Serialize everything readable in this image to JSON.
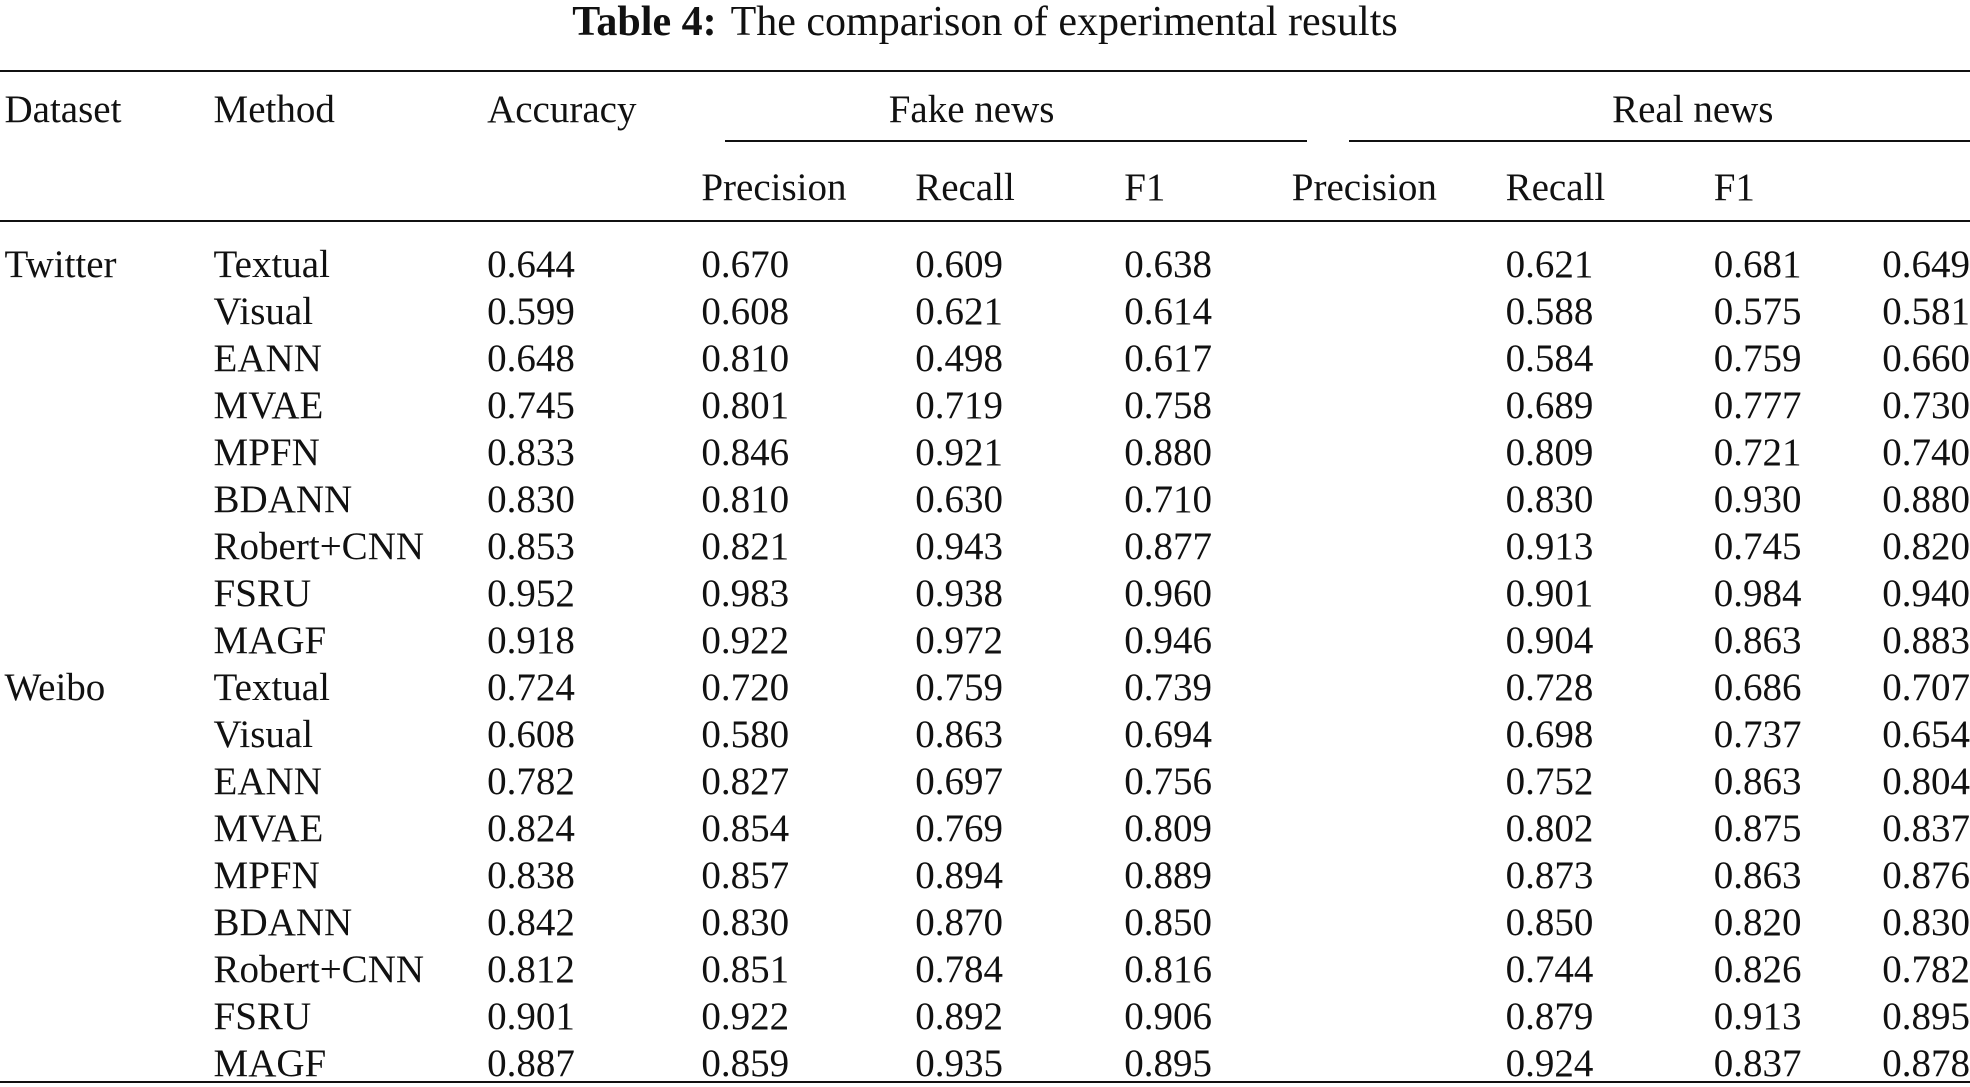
{
  "caption": {
    "label": "Table 4:",
    "text": "The comparison of experimental results"
  },
  "headers": {
    "dataset": "Dataset",
    "method": "Method",
    "accuracy": "Accuracy",
    "fake_news": "Fake news",
    "real_news": "Real news",
    "precision": "Precision",
    "recall": "Recall",
    "f1": "F1"
  },
  "rows": [
    {
      "dataset": "Twitter",
      "method": "Textual",
      "values": [
        "0.644",
        "0.670",
        "0.609",
        "0.638",
        "0.621",
        "0.681",
        "0.649"
      ],
      "bold": []
    },
    {
      "dataset": "",
      "method": "Visual",
      "values": [
        "0.599",
        "0.608",
        "0.621",
        "0.614",
        "0.588",
        "0.575",
        "0.581"
      ],
      "bold": []
    },
    {
      "dataset": "",
      "method": "EANN",
      "values": [
        "0.648",
        "0.810",
        "0.498",
        "0.617",
        "0.584",
        "0.759",
        "0.660"
      ],
      "bold": []
    },
    {
      "dataset": "",
      "method": "MVAE",
      "values": [
        "0.745",
        "0.801",
        "0.719",
        "0.758",
        "0.689",
        "0.777",
        "0.730"
      ],
      "bold": []
    },
    {
      "dataset": "",
      "method": "MPFN",
      "values": [
        "0.833",
        "0.846",
        "0.921",
        "0.880",
        "0.809",
        "0.721",
        "0.740"
      ],
      "bold": []
    },
    {
      "dataset": "",
      "method": "BDANN",
      "values": [
        "0.830",
        "0.810",
        "0.630",
        "0.710",
        "0.830",
        "0.930",
        "0.880"
      ],
      "bold": []
    },
    {
      "dataset": "",
      "method": "Robert+CNN",
      "values": [
        "0.853",
        "0.821",
        "0.943",
        "0.877",
        "0.913",
        "0.745",
        "0.820"
      ],
      "bold": [
        4
      ]
    },
    {
      "dataset": "",
      "method": "FSRU",
      "values": [
        "0.952",
        "0.983",
        "0.938",
        "0.960",
        "0.901",
        "0.984",
        "0.940"
      ],
      "bold": [
        0,
        1,
        3,
        5,
        6
      ]
    },
    {
      "dataset": "",
      "method": "MAGF",
      "method_bold": true,
      "values": [
        "0.918",
        "0.922",
        "0.972",
        "0.946",
        "0.904",
        "0.863",
        "0.883"
      ],
      "bold": [
        2
      ]
    },
    {
      "dataset": "Weibo",
      "method": "Textual",
      "values": [
        "0.724",
        "0.720",
        "0.759",
        "0.739",
        "0.728",
        "0.686",
        "0.707"
      ],
      "bold": []
    },
    {
      "dataset": "",
      "method": "Visual",
      "values": [
        "0.608",
        "0.580",
        "0.863",
        "0.694",
        "0.698",
        "0.737",
        "0.654"
      ],
      "bold": []
    },
    {
      "dataset": "",
      "method": "EANN",
      "values": [
        "0.782",
        "0.827",
        "0.697",
        "0.756",
        "0.752",
        "0.863",
        "0.804"
      ],
      "bold": []
    },
    {
      "dataset": "",
      "method": "MVAE",
      "values": [
        "0.824",
        "0.854",
        "0.769",
        "0.809",
        "0.802",
        "0.875",
        "0.837"
      ],
      "bold": []
    },
    {
      "dataset": "",
      "method": "MPFN",
      "values": [
        "0.838",
        "0.857",
        "0.894",
        "0.889",
        "0.873",
        "0.863",
        "0.876"
      ],
      "bold": []
    },
    {
      "dataset": "",
      "method": "BDANN",
      "values": [
        "0.842",
        "0.830",
        "0.870",
        "0.850",
        "0.850",
        "0.820",
        "0.830"
      ],
      "bold": []
    },
    {
      "dataset": "",
      "method": "Robert+CNN",
      "values": [
        "0.812",
        "0.851",
        "0.784",
        "0.816",
        "0.744",
        "0.826",
        "0.782"
      ],
      "bold": []
    },
    {
      "dataset": "",
      "method": "FSRU",
      "values": [
        "0.901",
        "0.922",
        "0.892",
        "0.906",
        "0.879",
        "0.913",
        "0.895"
      ],
      "bold": [
        0,
        1,
        3,
        5,
        6
      ]
    },
    {
      "dataset": "",
      "method": "MAGF",
      "method_bold": true,
      "values": [
        "0.887",
        "0.859",
        "0.935",
        "0.895",
        "0.924",
        "0.837",
        "0.878"
      ],
      "bold": [
        2,
        4
      ]
    }
  ]
}
